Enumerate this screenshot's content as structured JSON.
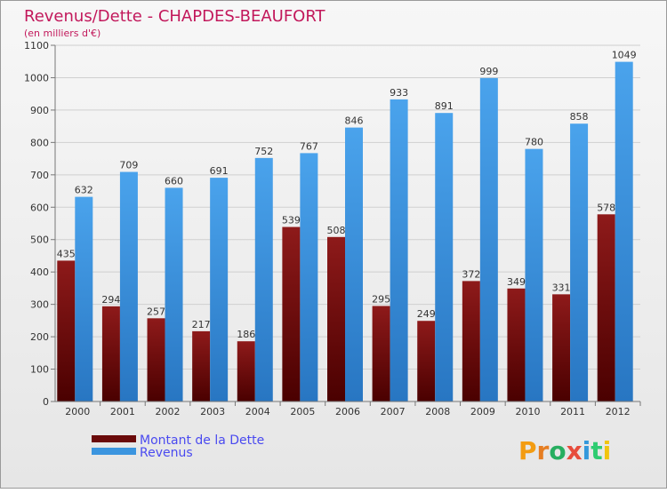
{
  "chart_data": {
    "type": "bar",
    "title": "Revenus/Dette - CHAPDES-BEAUFORT",
    "subtitle": "(en milliers d'€)",
    "categories": [
      "2000",
      "2001",
      "2002",
      "2003",
      "2004",
      "2005",
      "2006",
      "2007",
      "2008",
      "2009",
      "2010",
      "2011",
      "2012"
    ],
    "series": [
      {
        "name": "Montant de la Dette",
        "color": "#7a1010",
        "values": [
          435,
          294,
          257,
          217,
          186,
          539,
          508,
          295,
          249,
          372,
          349,
          331,
          578
        ]
      },
      {
        "name": "Revenus",
        "color": "#3b95df",
        "values": [
          632,
          709,
          660,
          691,
          752,
          767,
          846,
          933,
          891,
          999,
          780,
          858,
          1049
        ]
      }
    ],
    "ylim": [
      0,
      1100
    ],
    "yticks": [
      0,
      100,
      200,
      300,
      400,
      500,
      600,
      700,
      800,
      900,
      1000,
      1100
    ],
    "grid": true,
    "legend_position": "bottom-left"
  },
  "logo": {
    "text": "Proxiti"
  },
  "colors": {
    "title": "#c2185b",
    "legend_text": "#4a4af0",
    "grid": "#d0d0d0"
  }
}
